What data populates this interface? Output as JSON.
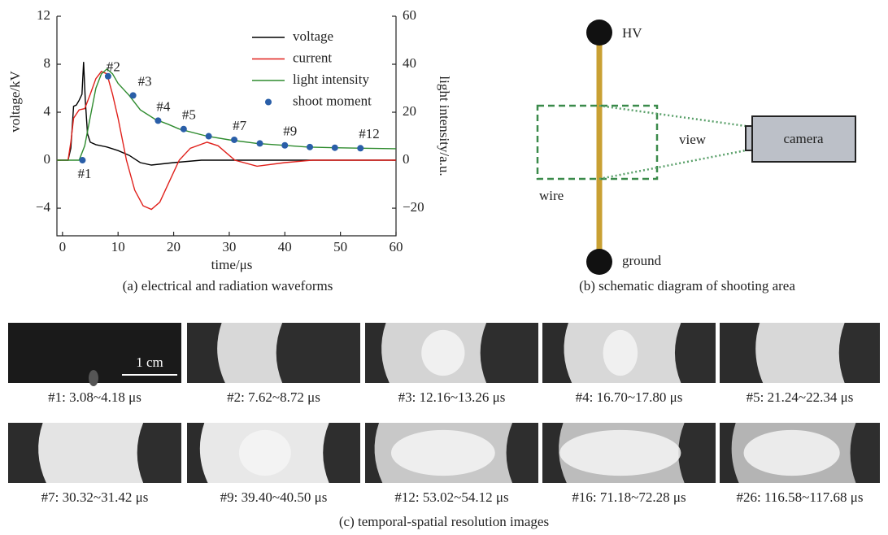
{
  "chart_data": {
    "type": "line",
    "caption": "(a) electrical and radiation waveforms",
    "xlabel": "time/μs",
    "ylabel": "voltage/kV",
    "y2label": "light intensity/a.u.",
    "xlim": [
      -1,
      60
    ],
    "xticks": [
      0,
      10,
      20,
      30,
      40,
      50,
      60
    ],
    "ylim": [
      -6.3,
      12
    ],
    "yticks": [
      {
        "value": -4,
        "label": "−4"
      },
      0,
      4,
      8,
      12
    ],
    "y2lim": [
      -31.5,
      60
    ],
    "y2ticks": [
      {
        "value": -20,
        "label": "−20"
      },
      0,
      20,
      40,
      60
    ],
    "series": [
      {
        "name": "voltage",
        "color": "#000000",
        "x": [
          -1,
          1,
          1.5,
          2,
          2.5,
          3,
          3.5,
          3.8,
          4.1,
          4.5,
          5,
          6,
          8,
          10,
          12,
          14,
          16,
          18,
          20,
          25,
          30,
          40,
          60
        ],
        "values": [
          0,
          0,
          1,
          4.5,
          4.6,
          5,
          5.5,
          8.2,
          5,
          2.2,
          1.5,
          1.3,
          1.1,
          0.8,
          0.4,
          -0.2,
          -0.4,
          -0.3,
          -0.2,
          0,
          0,
          0,
          0
        ]
      },
      {
        "name": "current",
        "color": "#e0201b",
        "x": [
          -1,
          1,
          1.5,
          2,
          3,
          4,
          5,
          6,
          7,
          8,
          9,
          10,
          11.5,
          13,
          14.5,
          16,
          17.5,
          19,
          21,
          23,
          26,
          28,
          31,
          35,
          40,
          45,
          60
        ],
        "values": [
          0,
          0,
          1.5,
          3.5,
          4.2,
          4.3,
          5.5,
          6.8,
          7.4,
          7.2,
          5.5,
          3.5,
          0,
          -2.5,
          -3.8,
          -4.1,
          -3.5,
          -2,
          0,
          1,
          1.5,
          1.2,
          0,
          -0.5,
          -0.2,
          0,
          0
        ]
      },
      {
        "name": "light intensity",
        "color": "#2e8b2e",
        "axis": "y2",
        "x": [
          -1,
          3,
          4,
          5,
          6,
          7,
          8,
          9,
          10,
          12,
          14,
          16.7,
          19,
          21,
          26,
          30,
          35,
          40,
          44,
          49,
          54,
          60
        ],
        "values": [
          0,
          0,
          6,
          18,
          30,
          36,
          38,
          36,
          32,
          27,
          21,
          17,
          15,
          13,
          10,
          8.5,
          7,
          6.2,
          5.5,
          5.2,
          5,
          4.8
        ]
      },
      {
        "name": "shoot moment",
        "color": "#2a5ea8",
        "axis": "y2",
        "type": "scatter",
        "x": [
          3.6,
          8.2,
          12.7,
          17.2,
          21.8,
          26.3,
          30.9,
          35.5,
          40,
          44.5,
          49,
          53.6
        ],
        "values": [
          0,
          35,
          27,
          16.5,
          13,
          10,
          8.5,
          7,
          6.2,
          5.5,
          5.2,
          5
        ]
      }
    ],
    "annotations": [
      "#1",
      "#2",
      "#3",
      "#4",
      "#5",
      "#7",
      "#9",
      "#12"
    ]
  },
  "diagram": {
    "caption": "(b) schematic diagram of shooting area",
    "hv": "HV",
    "ground": "ground",
    "wire": "wire",
    "view": "view",
    "camera": "camera"
  },
  "images": {
    "caption": "(c) temporal-spatial resolution images",
    "scale_bar": "1 cm",
    "frames": [
      "#1: 3.08~4.18 μs",
      "#2: 7.62~8.72 μs",
      "#3: 12.16~13.26 μs",
      "#4: 16.70~17.80 μs",
      "#5: 21.24~22.34 μs",
      "#7: 30.32~31.42 μs",
      "#9: 39.40~40.50 μs",
      "#12: 53.02~54.12 μs",
      "#16: 71.18~72.28 μs",
      "#26: 116.58~117.68 μs"
    ]
  }
}
